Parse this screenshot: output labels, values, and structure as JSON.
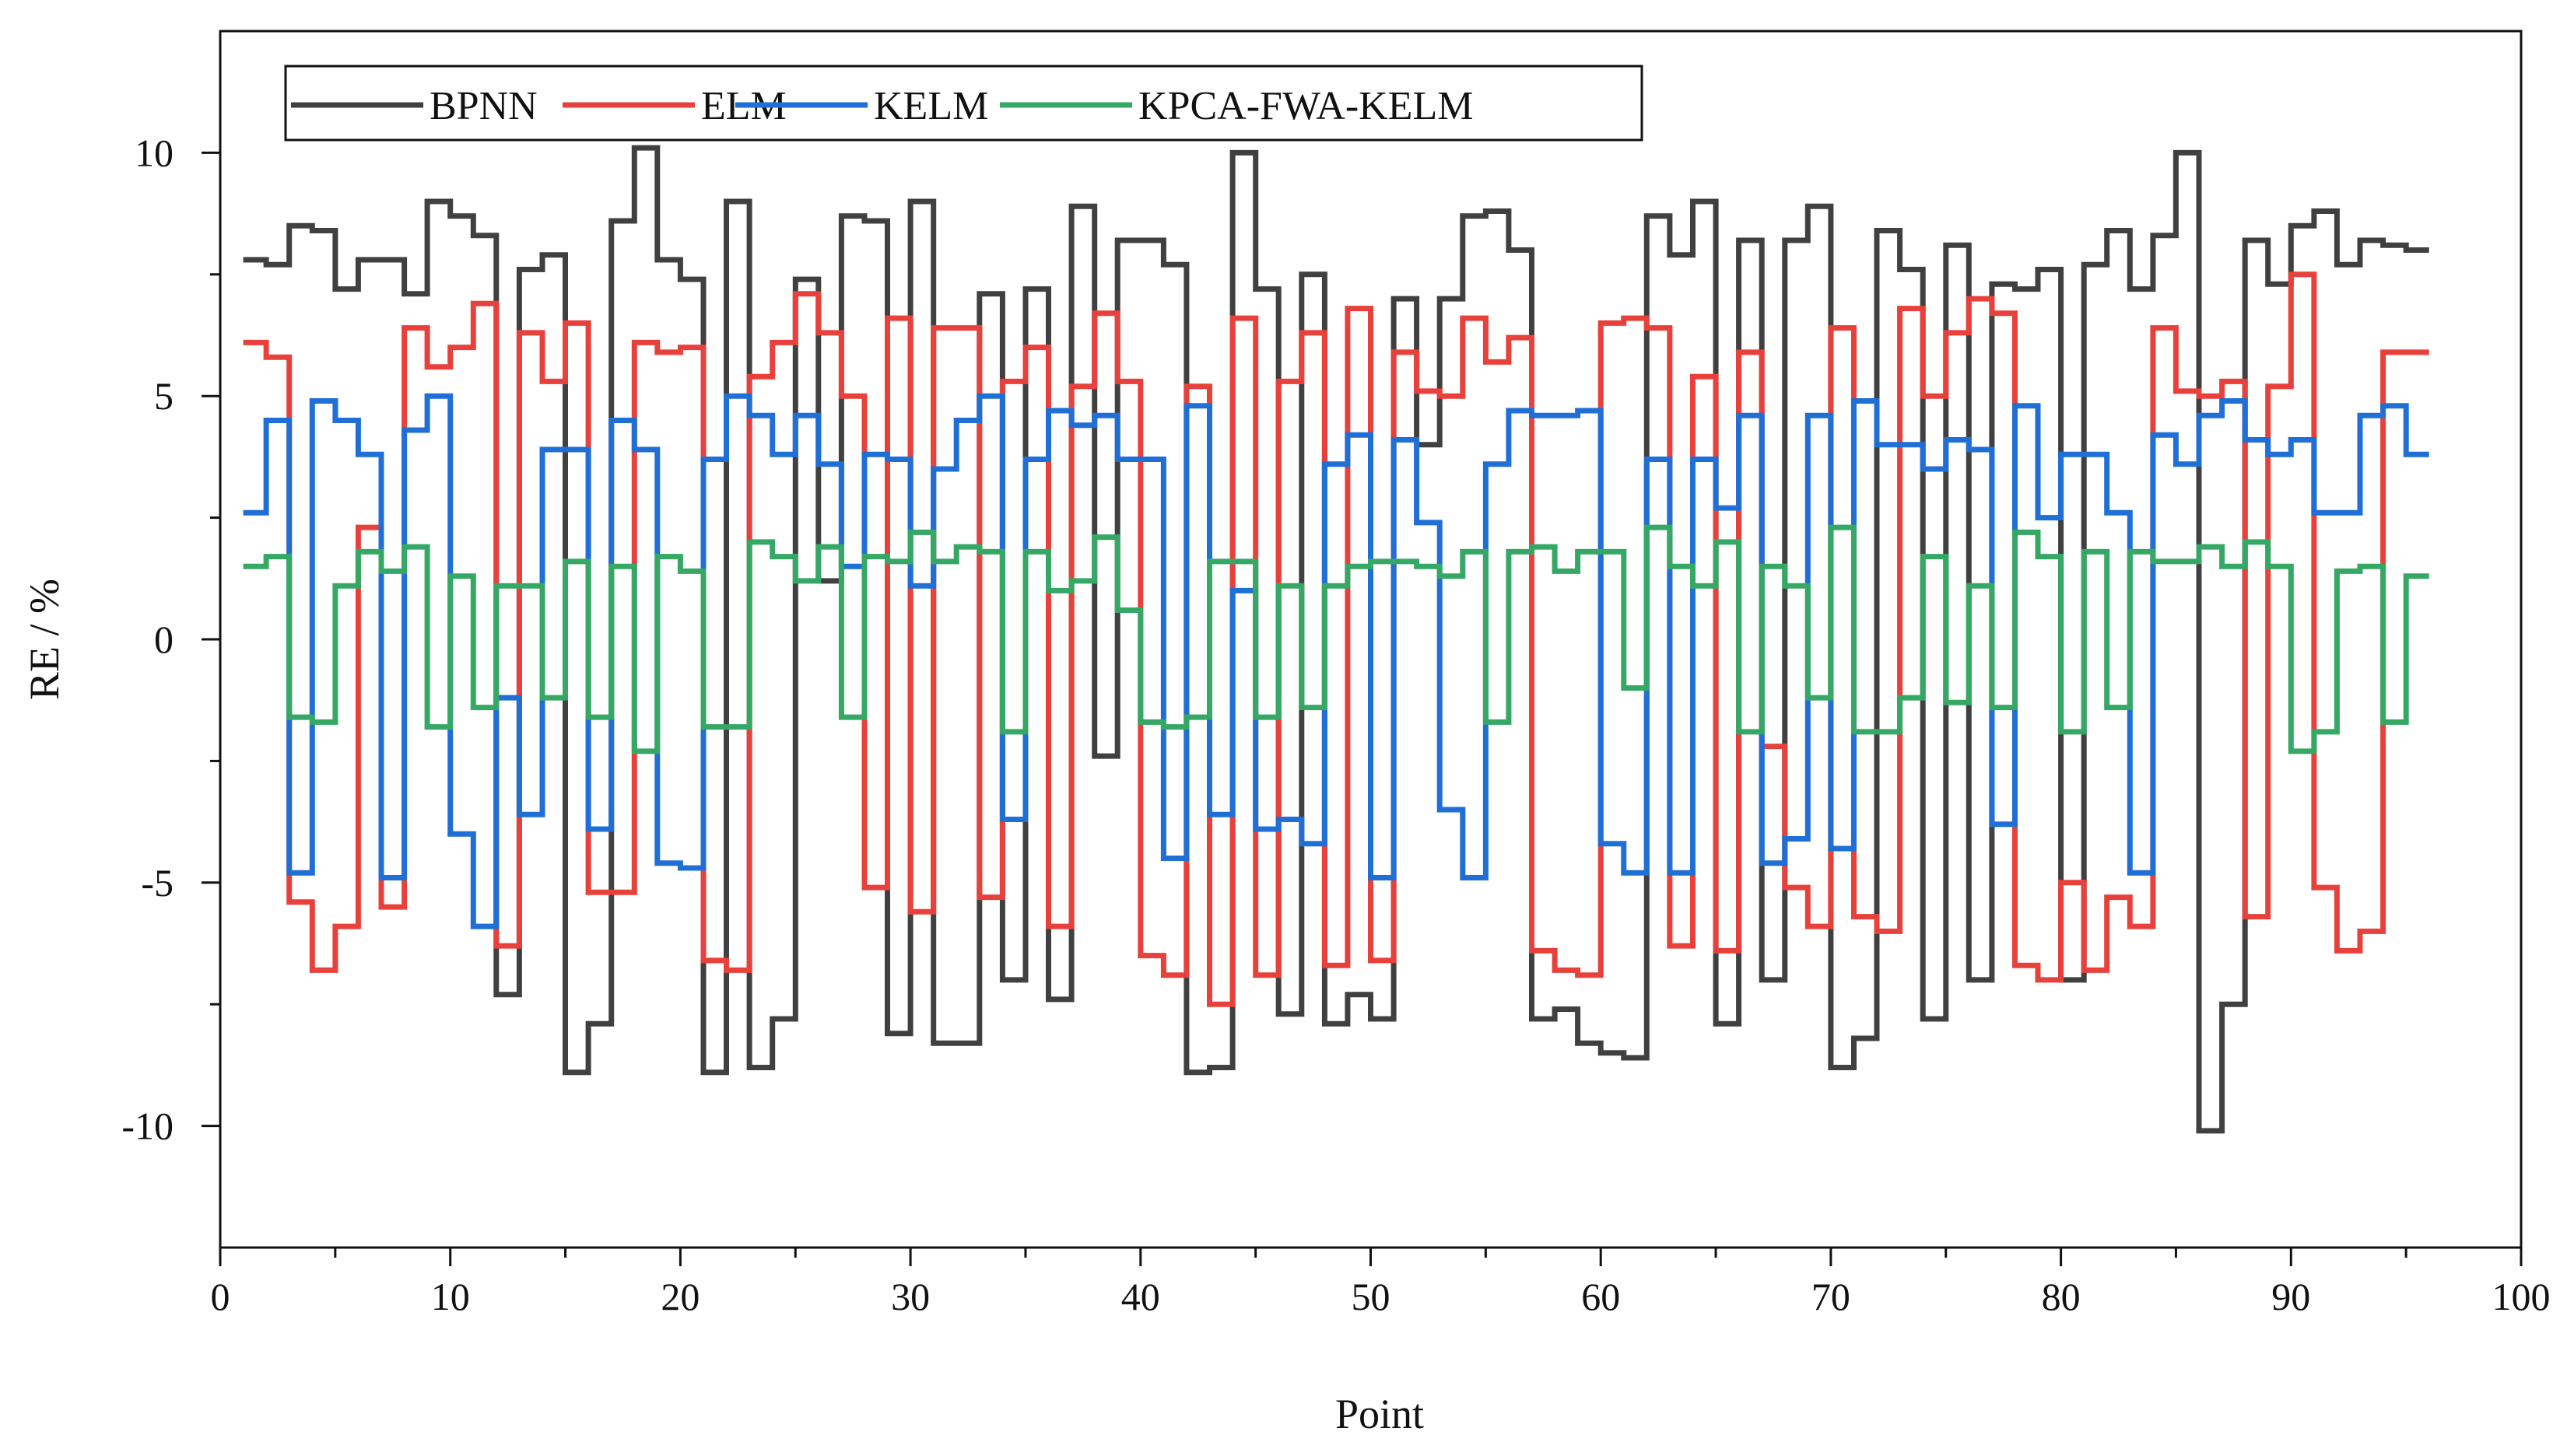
{
  "chart_data": {
    "type": "line",
    "step": true,
    "xlabel": "Point",
    "ylabel": "RE / %",
    "xlim": [
      0,
      100
    ],
    "ylim": [
      -12.5,
      12.5
    ],
    "xticks": [
      0,
      10,
      20,
      30,
      40,
      50,
      60,
      70,
      80,
      90,
      100
    ],
    "yticks": [
      -10,
      -5,
      0,
      5,
      10
    ],
    "legend_position": "top-left",
    "x": [
      1,
      2,
      3,
      4,
      5,
      6,
      7,
      8,
      9,
      10,
      11,
      12,
      13,
      14,
      15,
      16,
      17,
      18,
      19,
      20,
      21,
      22,
      23,
      24,
      25,
      26,
      27,
      28,
      29,
      30,
      31,
      32,
      33,
      34,
      35,
      36,
      37,
      38,
      39,
      40,
      41,
      42,
      43,
      44,
      45,
      46,
      47,
      48,
      49,
      50,
      51,
      52,
      53,
      54,
      55,
      56,
      57,
      58,
      59,
      60,
      61,
      62,
      63,
      64,
      65,
      66,
      67,
      68,
      69,
      70,
      71,
      72,
      73,
      74,
      75,
      76,
      77,
      78,
      79,
      80,
      81,
      82,
      83,
      84,
      85,
      86,
      87,
      88,
      89,
      90,
      91,
      92,
      93,
      94,
      95,
      96
    ],
    "series": [
      {
        "name": "BPNN",
        "color": "#404040",
        "values": [
          7.8,
          7.7,
          8.5,
          8.4,
          7.2,
          7.8,
          7.8,
          7.1,
          9.0,
          8.7,
          8.3,
          -7.3,
          7.6,
          7.9,
          -8.9,
          -7.9,
          8.6,
          10.1,
          7.8,
          7.4,
          -8.9,
          9.0,
          -8.8,
          -7.8,
          7.4,
          1.2,
          8.7,
          8.6,
          -8.1,
          9.0,
          -8.3,
          -8.3,
          7.1,
          -7.0,
          7.2,
          -7.4,
          8.9,
          -2.4,
          8.2,
          8.2,
          7.7,
          -8.9,
          -8.8,
          10.0,
          7.2,
          -7.7,
          7.5,
          -7.9,
          -7.3,
          -7.8,
          7.0,
          4.0,
          7.0,
          8.7,
          8.8,
          8.0,
          -7.8,
          -7.6,
          -8.3,
          -8.5,
          -8.6,
          8.7,
          7.9,
          9.0,
          -7.9,
          8.2,
          -7.0,
          8.2,
          8.9,
          -8.8,
          -8.2,
          8.4,
          7.6,
          -7.8,
          8.1,
          -7.0,
          7.3,
          7.2,
          7.6,
          -7.0,
          7.7,
          8.4,
          7.2,
          8.3,
          10.0,
          -10.1,
          -7.5,
          8.2,
          7.3,
          8.5,
          8.8,
          7.7,
          8.2,
          8.1,
          8.0,
          8.0
        ]
      },
      {
        "name": "ELM",
        "color": "#e8413c",
        "values": [
          6.1,
          5.8,
          -5.4,
          -6.8,
          -5.9,
          2.3,
          -5.5,
          6.4,
          5.6,
          6.0,
          6.9,
          -6.3,
          6.3,
          5.3,
          6.5,
          -5.2,
          -5.2,
          6.1,
          5.9,
          6.0,
          -6.6,
          -6.8,
          5.4,
          6.1,
          7.1,
          6.3,
          5.0,
          -5.1,
          6.6,
          -5.6,
          6.4,
          6.4,
          -5.3,
          5.3,
          6.0,
          -5.9,
          5.2,
          6.7,
          5.3,
          -6.5,
          -6.9,
          5.2,
          -7.5,
          6.6,
          -6.9,
          5.3,
          6.3,
          -6.7,
          6.8,
          -6.6,
          5.9,
          5.1,
          5.0,
          6.6,
          5.7,
          6.2,
          -6.4,
          -6.8,
          -6.9,
          6.5,
          6.6,
          6.4,
          -6.3,
          5.4,
          -6.4,
          5.9,
          -2.2,
          -5.1,
          -5.9,
          6.4,
          -5.7,
          -6.0,
          6.8,
          5.0,
          6.3,
          7.0,
          6.7,
          -6.7,
          -7.0,
          -5.0,
          -6.8,
          -5.3,
          -5.9,
          6.4,
          5.1,
          5.0,
          5.3,
          -5.7,
          5.2,
          7.5,
          -5.1,
          -6.4,
          -6.0,
          5.9,
          5.9,
          5.9
        ]
      },
      {
        "name": "KELM",
        "color": "#1f6fd6",
        "values": [
          2.6,
          4.5,
          -4.8,
          4.9,
          4.5,
          3.8,
          -4.9,
          4.3,
          5.0,
          -4.0,
          -5.9,
          -1.2,
          -3.6,
          3.9,
          3.9,
          -3.9,
          4.5,
          3.9,
          -4.6,
          -4.7,
          3.7,
          5.0,
          4.6,
          3.8,
          4.6,
          3.6,
          1.5,
          3.8,
          3.7,
          1.1,
          3.5,
          4.5,
          5.0,
          -3.7,
          3.7,
          4.7,
          4.4,
          4.6,
          3.7,
          3.7,
          -4.5,
          4.8,
          -3.6,
          1.0,
          -3.9,
          -3.7,
          -4.2,
          3.6,
          4.2,
          -4.9,
          4.1,
          2.4,
          -3.5,
          -4.9,
          3.6,
          4.7,
          4.6,
          4.6,
          4.7,
          -4.2,
          -4.8,
          3.7,
          -4.8,
          3.7,
          2.7,
          4.6,
          -4.6,
          -4.1,
          4.6,
          -4.3,
          4.9,
          4.0,
          4.0,
          3.5,
          4.1,
          3.9,
          -3.8,
          4.8,
          2.5,
          3.8,
          3.8,
          2.6,
          -4.8,
          4.2,
          3.6,
          4.6,
          4.9,
          4.1,
          3.8,
          4.1,
          2.6,
          2.6,
          4.6,
          4.8,
          3.8,
          3.8
        ]
      },
      {
        "name": "KPCA-FWA-KELM",
        "color": "#35a865",
        "values": [
          1.5,
          1.7,
          -1.6,
          -1.7,
          1.1,
          1.8,
          1.4,
          1.9,
          -1.8,
          1.3,
          -1.4,
          1.1,
          1.1,
          -1.2,
          1.6,
          -1.6,
          1.5,
          -2.3,
          1.7,
          1.4,
          -1.8,
          -1.8,
          2.0,
          1.7,
          1.2,
          1.9,
          -1.6,
          1.7,
          1.6,
          2.2,
          1.6,
          1.9,
          1.8,
          -1.9,
          1.8,
          1.0,
          1.2,
          2.1,
          0.6,
          -1.7,
          -1.8,
          -1.6,
          1.6,
          1.6,
          -1.6,
          1.1,
          -1.4,
          1.1,
          1.5,
          1.6,
          1.6,
          1.5,
          1.3,
          1.8,
          -1.7,
          1.8,
          1.9,
          1.4,
          1.8,
          1.8,
          -1.0,
          2.3,
          1.5,
          1.1,
          2.0,
          -1.9,
          1.5,
          1.1,
          -1.2,
          2.3,
          -1.9,
          -1.9,
          -1.2,
          1.7,
          -1.3,
          1.1,
          -1.4,
          2.2,
          1.7,
          -1.9,
          1.8,
          -1.4,
          1.8,
          1.6,
          1.6,
          1.9,
          1.5,
          2.0,
          1.5,
          -2.3,
          -1.9,
          1.4,
          1.5,
          -1.7,
          1.3,
          1.3
        ]
      }
    ]
  }
}
